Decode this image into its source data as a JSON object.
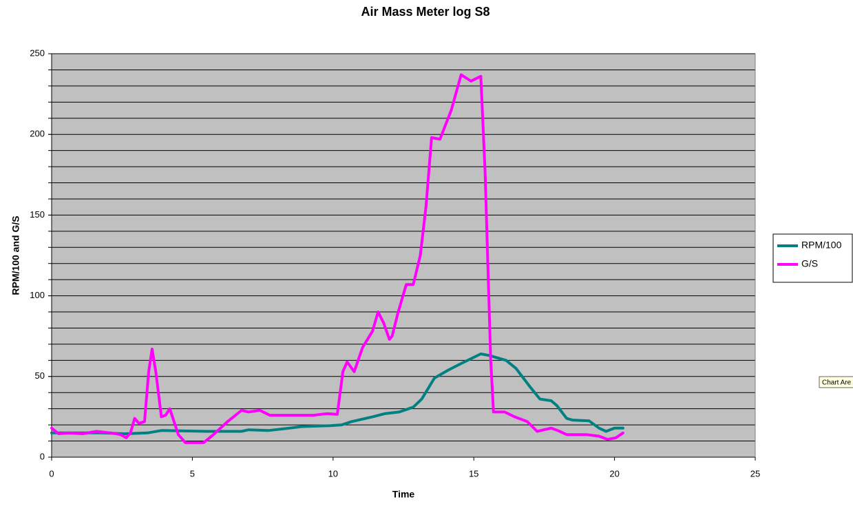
{
  "chart_data": {
    "type": "line",
    "title": "Air Mass Meter log S8",
    "x_label": "Time",
    "y_label": "RPM/100 and G/S",
    "tooltip": "Chart Are",
    "xlim": [
      0,
      25
    ],
    "xticks": [
      0,
      5,
      10,
      15,
      20,
      25
    ],
    "ylim": [
      0,
      250
    ],
    "yticks": [
      0,
      50,
      100,
      150,
      200,
      250
    ],
    "ygrid": [
      10,
      20,
      30,
      40,
      50,
      60,
      70,
      80,
      90,
      100,
      110,
      120,
      130,
      140,
      150,
      160,
      170,
      180,
      190,
      200,
      210,
      220,
      230,
      240,
      250
    ],
    "grid": true,
    "plot_background": "#c0c0c0",
    "legend": "right",
    "series": [
      {
        "name": "RPM/100",
        "color": "#008080",
        "x": [
          0,
          1.8,
          2.6,
          3.4,
          3.9,
          5.5,
          6.75,
          7.0,
          7.7,
          8.45,
          8.9,
          9.9,
          10.3,
          10.65,
          11.4,
          11.85,
          12.35,
          12.85,
          13.15,
          13.6,
          14.1,
          14.55,
          15.25,
          15.55,
          16.15,
          16.5,
          17.0,
          17.35,
          17.75,
          17.95,
          18.3,
          18.5,
          19.1,
          19.45,
          19.7,
          20.0,
          20.3
        ],
        "values": [
          15,
          15,
          14.5,
          15,
          16.5,
          16,
          16,
          17,
          16.5,
          18,
          19,
          19.5,
          20,
          22,
          25,
          27,
          28,
          31,
          36,
          49,
          54,
          58,
          64,
          63,
          60,
          55,
          43.5,
          36,
          35,
          32,
          24,
          23,
          22.5,
          18,
          16,
          18,
          18
        ]
      },
      {
        "name": "G/S",
        "color": "#ff00ff",
        "x": [
          0,
          0.25,
          0.6,
          1.1,
          1.6,
          2.1,
          2.45,
          2.65,
          2.8,
          2.95,
          3.1,
          3.3,
          3.45,
          3.57,
          3.7,
          3.9,
          4.05,
          4.2,
          4.35,
          4.5,
          4.75,
          5.0,
          5.4,
          5.75,
          6.25,
          6.75,
          7.0,
          7.4,
          7.75,
          8.2,
          8.9,
          9.3,
          9.8,
          10.15,
          10.35,
          10.5,
          10.75,
          11.05,
          11.4,
          11.6,
          11.8,
          12.0,
          12.1,
          12.3,
          12.6,
          12.85,
          13.1,
          13.3,
          13.5,
          13.8,
          14.2,
          14.55,
          14.9,
          15.25,
          15.4,
          15.6,
          15.7,
          16.1,
          16.45,
          16.9,
          17.25,
          17.75,
          18.05,
          18.3,
          19.0,
          19.45,
          19.75,
          20.05,
          20.3
        ],
        "values": [
          18,
          14.5,
          15,
          14.5,
          16,
          15,
          14,
          12,
          15,
          24,
          21,
          22,
          53,
          67,
          53,
          25,
          26,
          30,
          22,
          14,
          9,
          9,
          9,
          14,
          22,
          29,
          28,
          29,
          26,
          26,
          26,
          26,
          27,
          26.5,
          53,
          59,
          53,
          68,
          78,
          90,
          83,
          73,
          75,
          89,
          107,
          107,
          125,
          155,
          198,
          197,
          215,
          237,
          233,
          236,
          177,
          61,
          28,
          28,
          25,
          22,
          16,
          18,
          16,
          14,
          14,
          13,
          11,
          12,
          15
        ]
      }
    ]
  }
}
